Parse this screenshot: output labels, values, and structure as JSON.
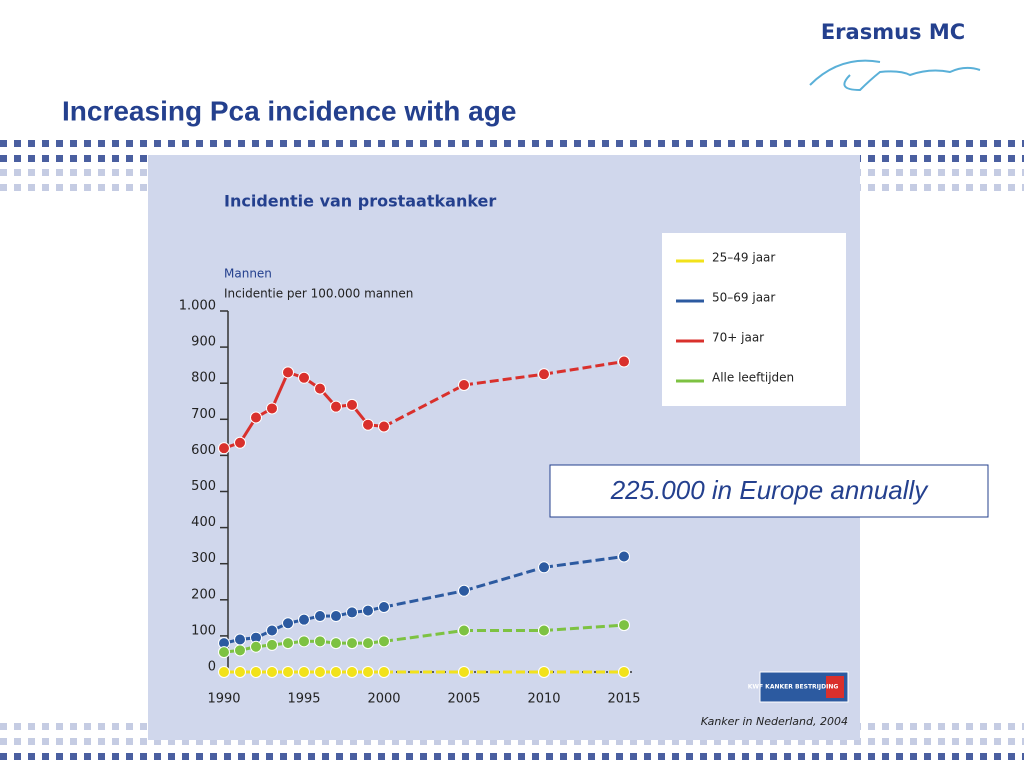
{
  "slide": {
    "title": "Increasing Pca incidence with age",
    "logo": "Erasmus MC",
    "callout": "225.000 in Europe annually",
    "kwf_logo": "KWF KANKER BESTRIJDING"
  },
  "chart_data": {
    "type": "line",
    "title": "Incidentie van prostaatkanker",
    "subtitle": "Mannen",
    "ylabel": "Incidentie per 100.000 mannen",
    "source": "Kanker in Nederland, 2004",
    "x": [
      1990,
      1991,
      1992,
      1993,
      1994,
      1995,
      1996,
      1997,
      1998,
      1999,
      2000,
      2005,
      2010,
      2015
    ],
    "series": [
      {
        "name": "25–49 jaar",
        "color": "#f2e21a",
        "values": [
          0,
          0,
          0,
          0,
          0,
          0,
          0,
          0,
          0,
          0,
          0,
          0,
          0,
          0
        ]
      },
      {
        "name": "50–69 jaar",
        "color": "#2c5aa0",
        "values": [
          80,
          90,
          95,
          115,
          135,
          145,
          155,
          155,
          165,
          170,
          180,
          225,
          290,
          320
        ]
      },
      {
        "name": "70+ jaar",
        "color": "#d9302c",
        "values": [
          620,
          635,
          705,
          730,
          830,
          815,
          785,
          735,
          740,
          685,
          680,
          795,
          825,
          860
        ]
      },
      {
        "name": "Alle leeftijden",
        "color": "#7dc242",
        "values": [
          55,
          60,
          70,
          75,
          80,
          85,
          85,
          80,
          80,
          80,
          85,
          115,
          115,
          130
        ]
      }
    ],
    "xlim": [
      1990,
      2015
    ],
    "xticks": [
      1990,
      1995,
      2000,
      2005,
      2010,
      2015
    ],
    "ylim": [
      0,
      1000
    ],
    "yticks": [
      0,
      100,
      200,
      300,
      400,
      500,
      600,
      700,
      800,
      900,
      {
        "value": 1000,
        "label": "1.000"
      }
    ],
    "grid": false,
    "legend": "upper right"
  }
}
